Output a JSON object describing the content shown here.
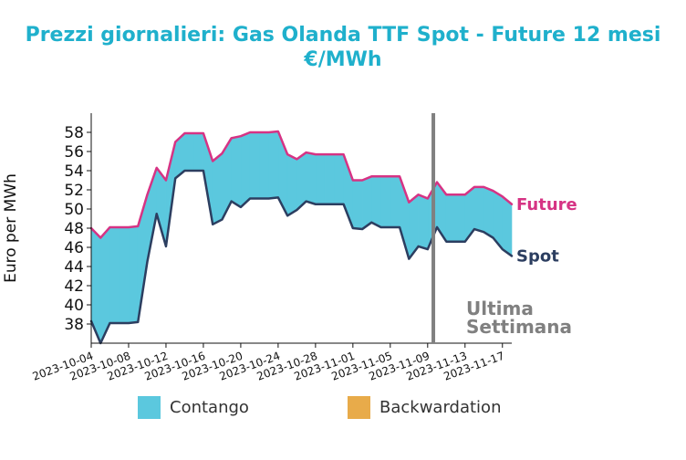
{
  "chart_data": {
    "type": "area",
    "title": "Prezzi giornalieri: Gas Olanda TTF Spot - Future 12 mesi",
    "subtitle": "€/MWh",
    "ylabel": "Euro per MWh",
    "xlabel": "",
    "ylim": [
      36,
      60
    ],
    "xlim": [
      "2023-10-04",
      "2023-11-18"
    ],
    "grid": false,
    "x_ticks": [
      "2023-10-04",
      "2023-10-08",
      "2023-10-12",
      "2023-10-16",
      "2023-10-20",
      "2023-10-24",
      "2023-10-28",
      "2023-11-01",
      "2023-11-05",
      "2023-11-09",
      "2023-11-13",
      "2023-11-17"
    ],
    "y_ticks": [
      38,
      40,
      42,
      44,
      46,
      48,
      50,
      52,
      54,
      56,
      58
    ],
    "series": [
      {
        "name": "Future",
        "color": "#d63384",
        "points": [
          [
            "2023-10-04",
            48.0
          ],
          [
            "2023-10-05",
            47.0
          ],
          [
            "2023-10-06",
            48.1
          ],
          [
            "2023-10-07",
            48.1
          ],
          [
            "2023-10-08",
            48.1
          ],
          [
            "2023-10-09",
            48.2
          ],
          [
            "2023-10-10",
            51.5
          ],
          [
            "2023-10-11",
            54.3
          ],
          [
            "2023-10-12",
            53.0
          ],
          [
            "2023-10-13",
            57.0
          ],
          [
            "2023-10-14",
            57.9
          ],
          [
            "2023-10-15",
            57.9
          ],
          [
            "2023-10-16",
            57.9
          ],
          [
            "2023-10-17",
            55.0
          ],
          [
            "2023-10-18",
            55.8
          ],
          [
            "2023-10-19",
            57.4
          ],
          [
            "2023-10-20",
            57.6
          ],
          [
            "2023-10-21",
            58.0
          ],
          [
            "2023-10-22",
            58.0
          ],
          [
            "2023-10-23",
            58.0
          ],
          [
            "2023-10-24",
            58.1
          ],
          [
            "2023-10-25",
            55.7
          ],
          [
            "2023-10-26",
            55.2
          ],
          [
            "2023-10-27",
            55.9
          ],
          [
            "2023-10-28",
            55.7
          ],
          [
            "2023-10-29",
            55.7
          ],
          [
            "2023-10-30",
            55.7
          ],
          [
            "2023-10-31",
            55.7
          ],
          [
            "2023-11-01",
            53.0
          ],
          [
            "2023-11-02",
            53.0
          ],
          [
            "2023-11-03",
            53.4
          ],
          [
            "2023-11-04",
            53.4
          ],
          [
            "2023-11-05",
            53.4
          ],
          [
            "2023-11-06",
            53.4
          ],
          [
            "2023-11-07",
            50.7
          ],
          [
            "2023-11-08",
            51.5
          ],
          [
            "2023-11-09",
            51.1
          ],
          [
            "2023-11-10",
            52.8
          ],
          [
            "2023-11-11",
            51.5
          ],
          [
            "2023-11-12",
            51.5
          ],
          [
            "2023-11-13",
            51.5
          ],
          [
            "2023-11-14",
            52.3
          ],
          [
            "2023-11-15",
            52.3
          ],
          [
            "2023-11-16",
            51.9
          ],
          [
            "2023-11-17",
            51.3
          ],
          [
            "2023-11-18",
            50.5
          ]
        ]
      },
      {
        "name": "Spot",
        "color": "#2c3e60",
        "points": [
          [
            "2023-10-04",
            38.3
          ],
          [
            "2023-10-05",
            36.0
          ],
          [
            "2023-10-06",
            38.1
          ],
          [
            "2023-10-07",
            38.1
          ],
          [
            "2023-10-08",
            38.1
          ],
          [
            "2023-10-09",
            38.2
          ],
          [
            "2023-10-10",
            44.5
          ],
          [
            "2023-10-11",
            49.5
          ],
          [
            "2023-10-12",
            46.1
          ],
          [
            "2023-10-13",
            53.2
          ],
          [
            "2023-10-14",
            54.0
          ],
          [
            "2023-10-15",
            54.0
          ],
          [
            "2023-10-16",
            54.0
          ],
          [
            "2023-10-17",
            48.4
          ],
          [
            "2023-10-18",
            48.9
          ],
          [
            "2023-10-19",
            50.8
          ],
          [
            "2023-10-20",
            50.2
          ],
          [
            "2023-10-21",
            51.1
          ],
          [
            "2023-10-22",
            51.1
          ],
          [
            "2023-10-23",
            51.1
          ],
          [
            "2023-10-24",
            51.2
          ],
          [
            "2023-10-25",
            49.3
          ],
          [
            "2023-10-26",
            49.9
          ],
          [
            "2023-10-27",
            50.8
          ],
          [
            "2023-10-28",
            50.5
          ],
          [
            "2023-10-29",
            50.5
          ],
          [
            "2023-10-30",
            50.5
          ],
          [
            "2023-10-31",
            50.5
          ],
          [
            "2023-11-01",
            48.0
          ],
          [
            "2023-11-02",
            47.9
          ],
          [
            "2023-11-03",
            48.6
          ],
          [
            "2023-11-04",
            48.1
          ],
          [
            "2023-11-05",
            48.1
          ],
          [
            "2023-11-06",
            48.1
          ],
          [
            "2023-11-07",
            44.8
          ],
          [
            "2023-11-08",
            46.1
          ],
          [
            "2023-11-09",
            45.8
          ],
          [
            "2023-11-10",
            48.1
          ],
          [
            "2023-11-11",
            46.6
          ],
          [
            "2023-11-12",
            46.6
          ],
          [
            "2023-11-13",
            46.6
          ],
          [
            "2023-11-14",
            47.9
          ],
          [
            "2023-11-15",
            47.6
          ],
          [
            "2023-11-16",
            47.0
          ],
          [
            "2023-11-17",
            45.8
          ],
          [
            "2023-11-18",
            45.1
          ]
        ]
      }
    ],
    "end_labels": [
      "Future",
      "Spot"
    ],
    "annotation": {
      "date": "2023-11-10",
      "text_line1": "Ultima",
      "text_line2": "Settimana",
      "color": "#808080"
    },
    "legend": [
      {
        "label": "Contango",
        "color": "#5bc8de"
      },
      {
        "label": "Backwardation",
        "color": "#e8ab4a"
      }
    ],
    "fill_colors": {
      "contango": "#5bc8de",
      "backwardation": "#e8ab4a"
    }
  }
}
